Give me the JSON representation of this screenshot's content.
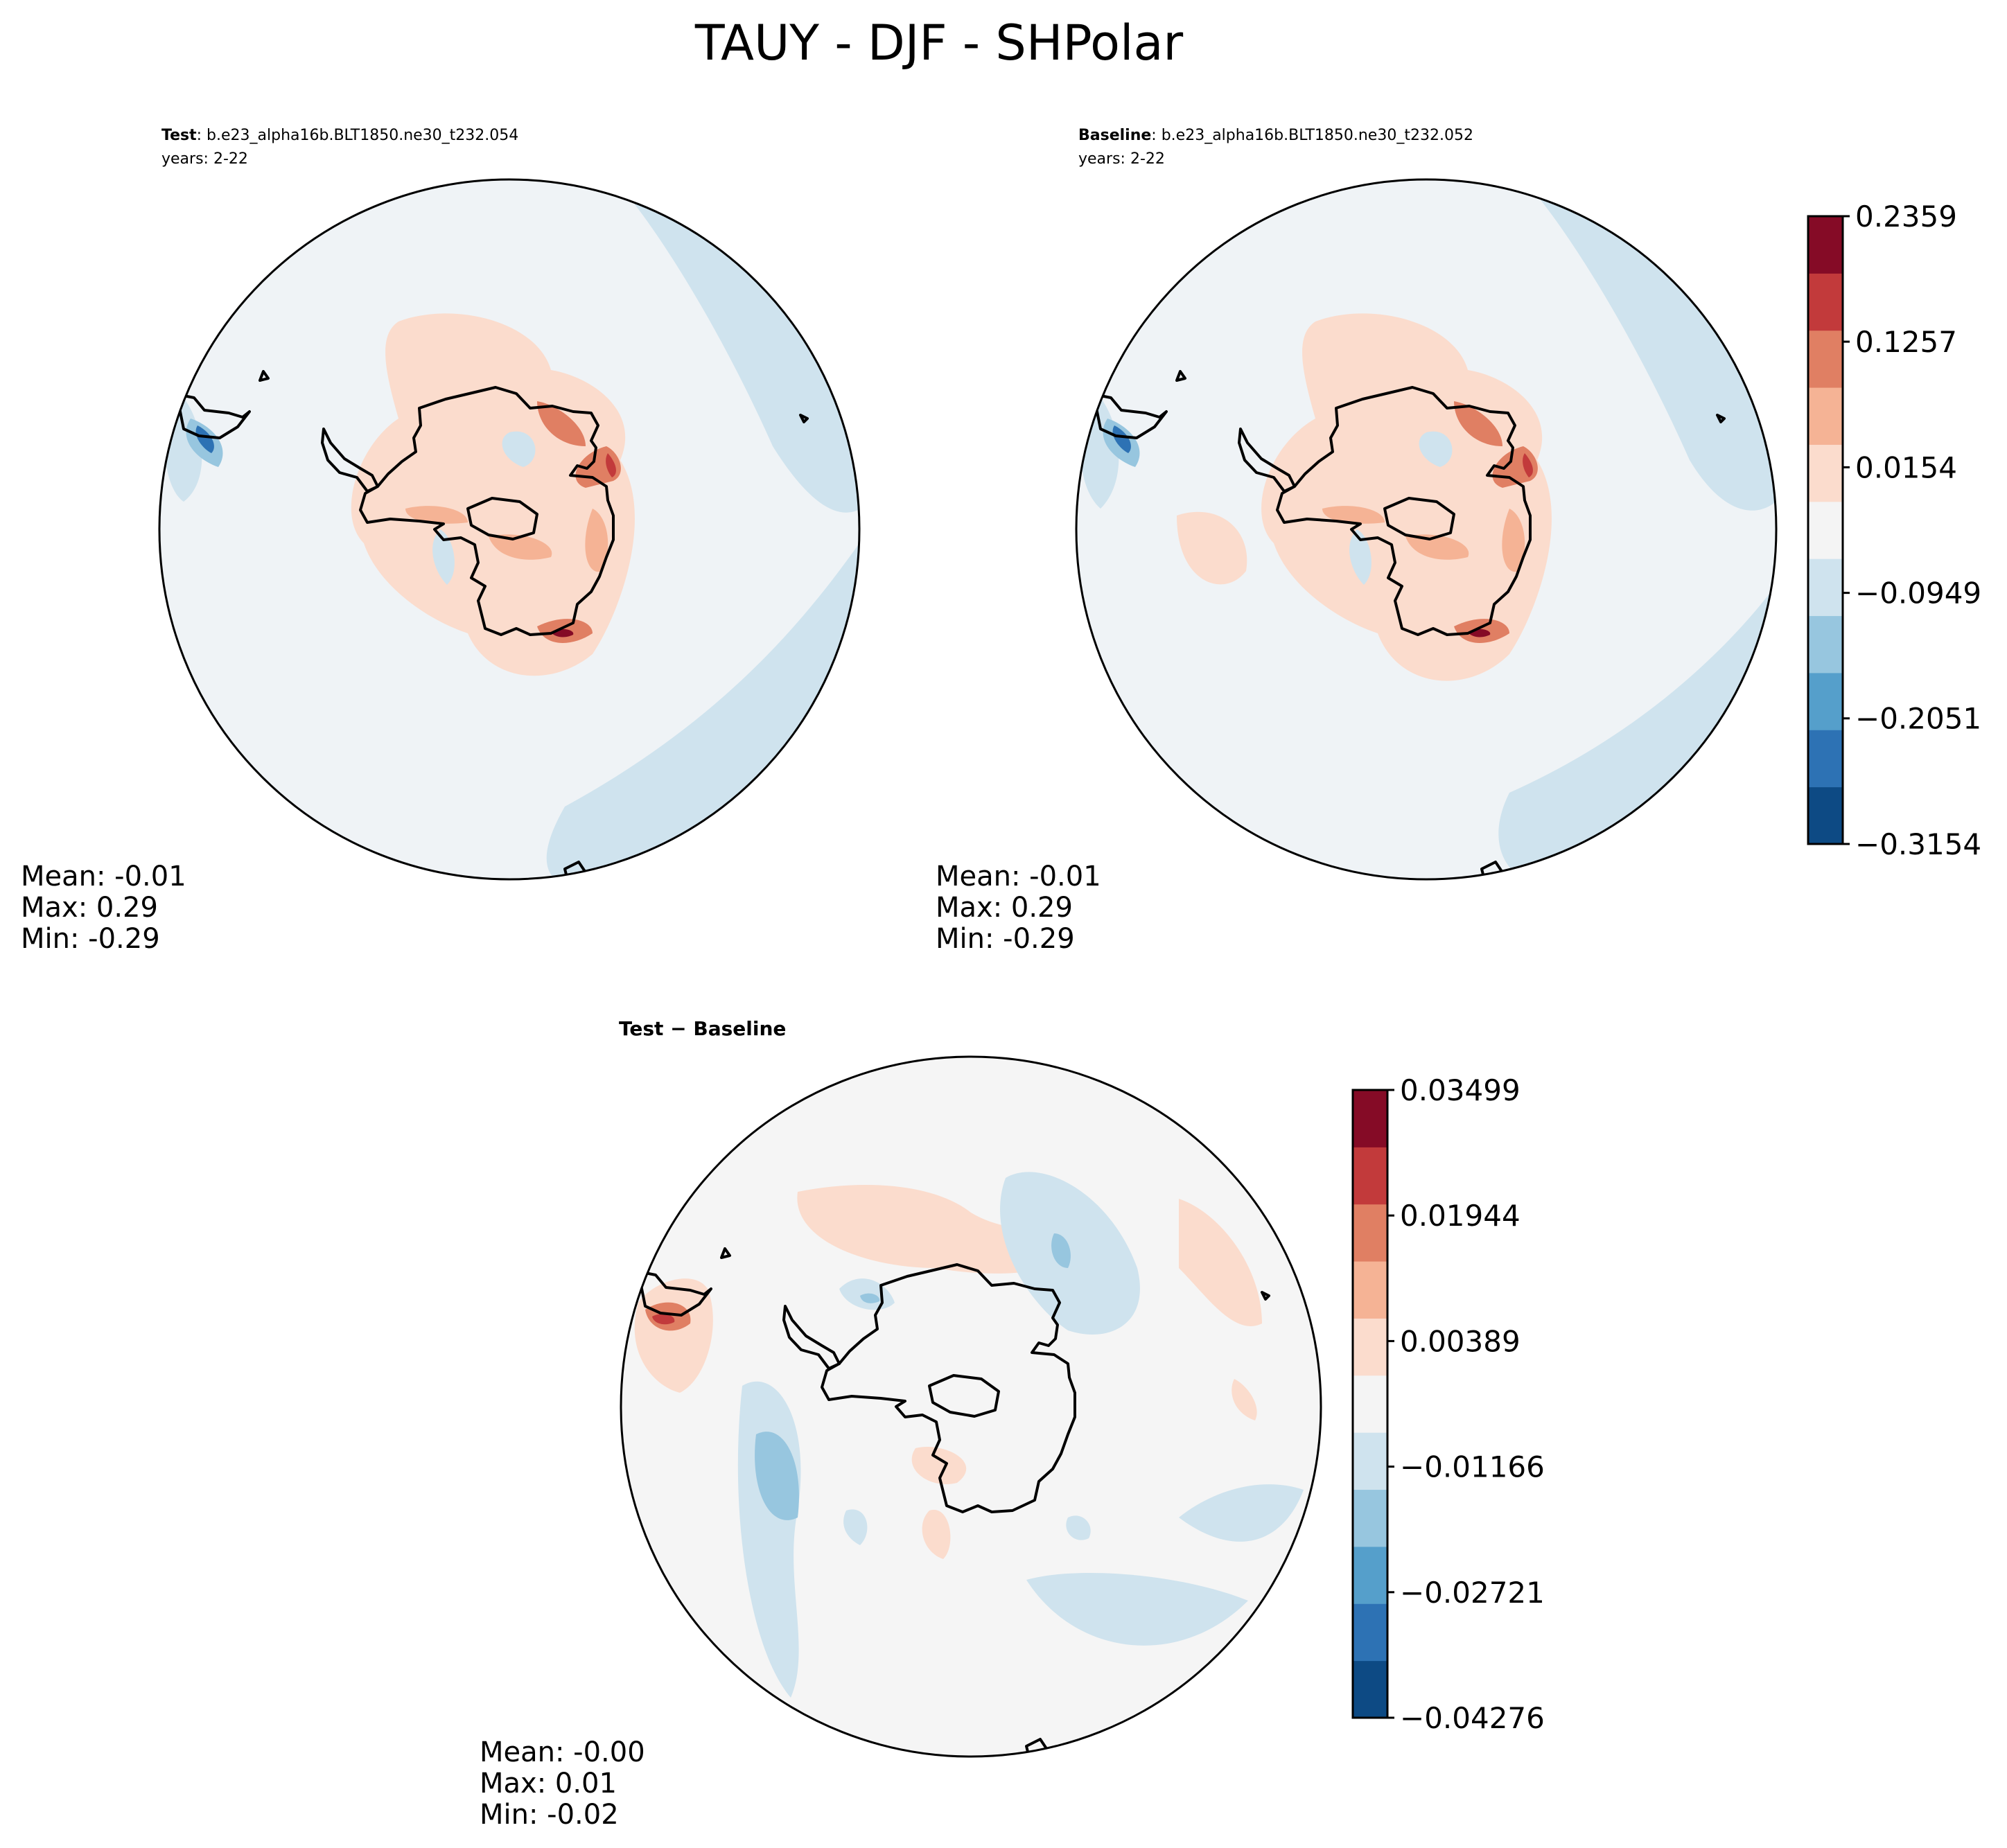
{
  "title": "TAUY - DJF - SHPolar",
  "colors": {
    "ocean_test": "#eff3f6",
    "ocean_diff": "#f5f5f5",
    "coast": "#000000",
    "scale": [
      "#0d4a84",
      "#2d72b4",
      "#559fcb",
      "#97c6df",
      "#cfe3ee",
      "#f4f4f4",
      "#fbdccd",
      "#f5b395",
      "#e07f63",
      "#c23a3b",
      "#850b26"
    ]
  },
  "panels": {
    "test": {
      "label_bold": "Test",
      "label_rest": ": b.e23_alpha16b.BLT1850.ne30_t232.054",
      "years": "years: 2-22",
      "mean": "Mean: -0.01",
      "max": "Max:  0.29",
      "min": "Min: -0.29"
    },
    "baseline": {
      "label_bold": "Baseline",
      "label_rest": ": b.e23_alpha16b.BLT1850.ne30_t232.052",
      "years": "years: 2-22",
      "mean": "Mean: -0.01",
      "max": "Max:  0.29",
      "min": "Min: -0.29"
    },
    "diff": {
      "label": "Test − Baseline",
      "mean": "Mean: -0.00",
      "max": "Max:  0.01",
      "min": "Min: -0.02"
    }
  },
  "colorbar_top": {
    "levels": [
      -0.3154,
      -0.2051,
      -0.0949,
      0.0154,
      0.1257,
      0.2359
    ],
    "labels": [
      "−0.3154",
      "−0.2051",
      "−0.0949",
      "0.0154",
      "0.1257",
      "0.2359"
    ]
  },
  "colorbar_diff": {
    "levels": [
      -0.04276,
      -0.02721,
      -0.01166,
      0.00389,
      0.01944,
      0.03499
    ],
    "labels": [
      "−0.04276",
      "−0.02721",
      "−0.01166",
      "0.00389",
      "0.01944",
      "0.03499"
    ]
  }
}
